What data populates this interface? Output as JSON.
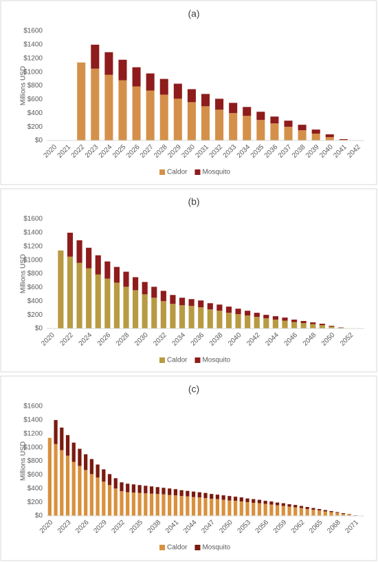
{
  "chart_data": [
    {
      "type": "bar",
      "stacked": true,
      "title": "(a)",
      "y_label": "Millions USD",
      "grid": false,
      "legend": "bottom",
      "categories": [
        "2020",
        "2021",
        "2022",
        "2023",
        "2024",
        "2025",
        "2026",
        "2027",
        "2028",
        "2029",
        "2030",
        "2031",
        "2032",
        "2033",
        "2034",
        "2035",
        "2036",
        "2037",
        "2038",
        "2039",
        "2040",
        "2041",
        "2042"
      ],
      "series": [
        {
          "name": "Caldor",
          "color": "#d4904a",
          "values": [
            0,
            0,
            1140,
            1050,
            960,
            880,
            790,
            730,
            670,
            610,
            560,
            500,
            450,
            400,
            360,
            300,
            250,
            200,
            150,
            100,
            50,
            10,
            0
          ]
        },
        {
          "name": "Mosquito",
          "color": "#8e1c1c",
          "values": [
            0,
            0,
            0,
            350,
            330,
            300,
            280,
            250,
            230,
            220,
            190,
            180,
            160,
            150,
            130,
            120,
            100,
            90,
            80,
            60,
            40,
            10,
            0
          ]
        }
      ],
      "ylim": [
        0,
        1600
      ],
      "yticks": [
        {
          "value": 0,
          "label": "$0"
        },
        {
          "value": 200,
          "label": "$200"
        },
        {
          "value": 400,
          "label": "$400"
        },
        {
          "value": 600,
          "label": "$600"
        },
        {
          "value": 800,
          "label": "$800"
        },
        {
          "value": 1000,
          "label": "$1000"
        },
        {
          "value": 1200,
          "label": "$1200"
        },
        {
          "value": 1400,
          "label": "$1400"
        },
        {
          "value": 1600,
          "label": "$1600"
        }
      ]
    },
    {
      "type": "bar",
      "stacked": true,
      "title": "(b)",
      "y_label": "Millions USD",
      "grid": false,
      "legend": "bottom",
      "categories": [
        "2020",
        null,
        "2022",
        null,
        "2024",
        null,
        "2026",
        null,
        "2028",
        null,
        "2030",
        null,
        "2032",
        null,
        "2034",
        null,
        "2036",
        null,
        "2038",
        null,
        "2040",
        null,
        "2042",
        null,
        "2044",
        null,
        "2046",
        null,
        "2048",
        null,
        "2050",
        null,
        "2052",
        null
      ],
      "series": [
        {
          "name": "Caldor",
          "color": "#b89a42",
          "values": [
            0,
            1140,
            1050,
            960,
            880,
            790,
            730,
            670,
            610,
            560,
            500,
            450,
            400,
            360,
            340,
            330,
            310,
            280,
            260,
            230,
            210,
            190,
            170,
            150,
            130,
            115,
            95,
            80,
            65,
            50,
            30,
            10,
            0,
            0
          ]
        },
        {
          "name": "Mosquito",
          "color": "#8e1c1c",
          "values": [
            0,
            0,
            350,
            330,
            300,
            280,
            250,
            230,
            220,
            190,
            180,
            160,
            150,
            130,
            110,
            100,
            100,
            90,
            90,
            90,
            80,
            70,
            60,
            50,
            50,
            45,
            35,
            30,
            25,
            20,
            10,
            5,
            0,
            0
          ]
        }
      ],
      "ylim": [
        0,
        1600
      ],
      "yticks": [
        {
          "value": 0,
          "label": "$0"
        },
        {
          "value": 200,
          "label": "$200"
        },
        {
          "value": 400,
          "label": "$400"
        },
        {
          "value": 600,
          "label": "$600"
        },
        {
          "value": 800,
          "label": "$800"
        },
        {
          "value": 1000,
          "label": "$1000"
        },
        {
          "value": 1200,
          "label": "$1200"
        },
        {
          "value": 1400,
          "label": "$1400"
        },
        {
          "value": 1600,
          "label": "$1600"
        }
      ]
    },
    {
      "type": "bar",
      "stacked": true,
      "title": "(c)",
      "y_label": "Millions USD",
      "grid": false,
      "legend": "bottom",
      "categories": [
        "2020",
        null,
        null,
        "2023",
        null,
        null,
        "2026",
        null,
        null,
        "2029",
        null,
        null,
        "2032",
        null,
        null,
        "2035",
        null,
        null,
        "2038",
        null,
        null,
        "2041",
        null,
        null,
        "2044",
        null,
        null,
        "2047",
        null,
        null,
        "2050",
        null,
        null,
        "2053",
        null,
        null,
        "2056",
        null,
        null,
        "2059",
        null,
        null,
        "2062",
        null,
        null,
        "2065",
        null,
        null,
        "2068",
        null,
        null,
        "2071",
        null
      ],
      "series": [
        {
          "name": "Caldor",
          "color": "#d8913f",
          "values": [
            1140,
            1050,
            960,
            880,
            790,
            730,
            670,
            610,
            560,
            500,
            450,
            400,
            360,
            345,
            340,
            335,
            330,
            325,
            320,
            315,
            305,
            300,
            290,
            285,
            275,
            270,
            260,
            250,
            245,
            235,
            225,
            220,
            210,
            200,
            190,
            185,
            175,
            165,
            155,
            145,
            135,
            125,
            115,
            100,
            90,
            80,
            65,
            55,
            45,
            30,
            20,
            8,
            0
          ]
        },
        {
          "name": "Mosquito",
          "color": "#7a1a10",
          "values": [
            0,
            350,
            330,
            300,
            280,
            250,
            230,
            220,
            190,
            180,
            160,
            150,
            130,
            125,
            120,
            115,
            110,
            105,
            100,
            95,
            95,
            90,
            85,
            80,
            80,
            75,
            75,
            70,
            65,
            65,
            65,
            60,
            60,
            55,
            55,
            50,
            45,
            45,
            40,
            40,
            35,
            35,
            30,
            30,
            25,
            20,
            20,
            15,
            10,
            10,
            5,
            2,
            0
          ]
        }
      ],
      "ylim": [
        0,
        1600
      ],
      "yticks": [
        {
          "value": 0,
          "label": "$0"
        },
        {
          "value": 200,
          "label": "$200"
        },
        {
          "value": 400,
          "label": "$400"
        },
        {
          "value": 600,
          "label": "$600"
        },
        {
          "value": 800,
          "label": "$800"
        },
        {
          "value": 1000,
          "label": "$1000"
        },
        {
          "value": 1200,
          "label": "$1200"
        },
        {
          "value": 1400,
          "label": "$1400"
        },
        {
          "value": 1600,
          "label": "$1600"
        }
      ]
    }
  ]
}
